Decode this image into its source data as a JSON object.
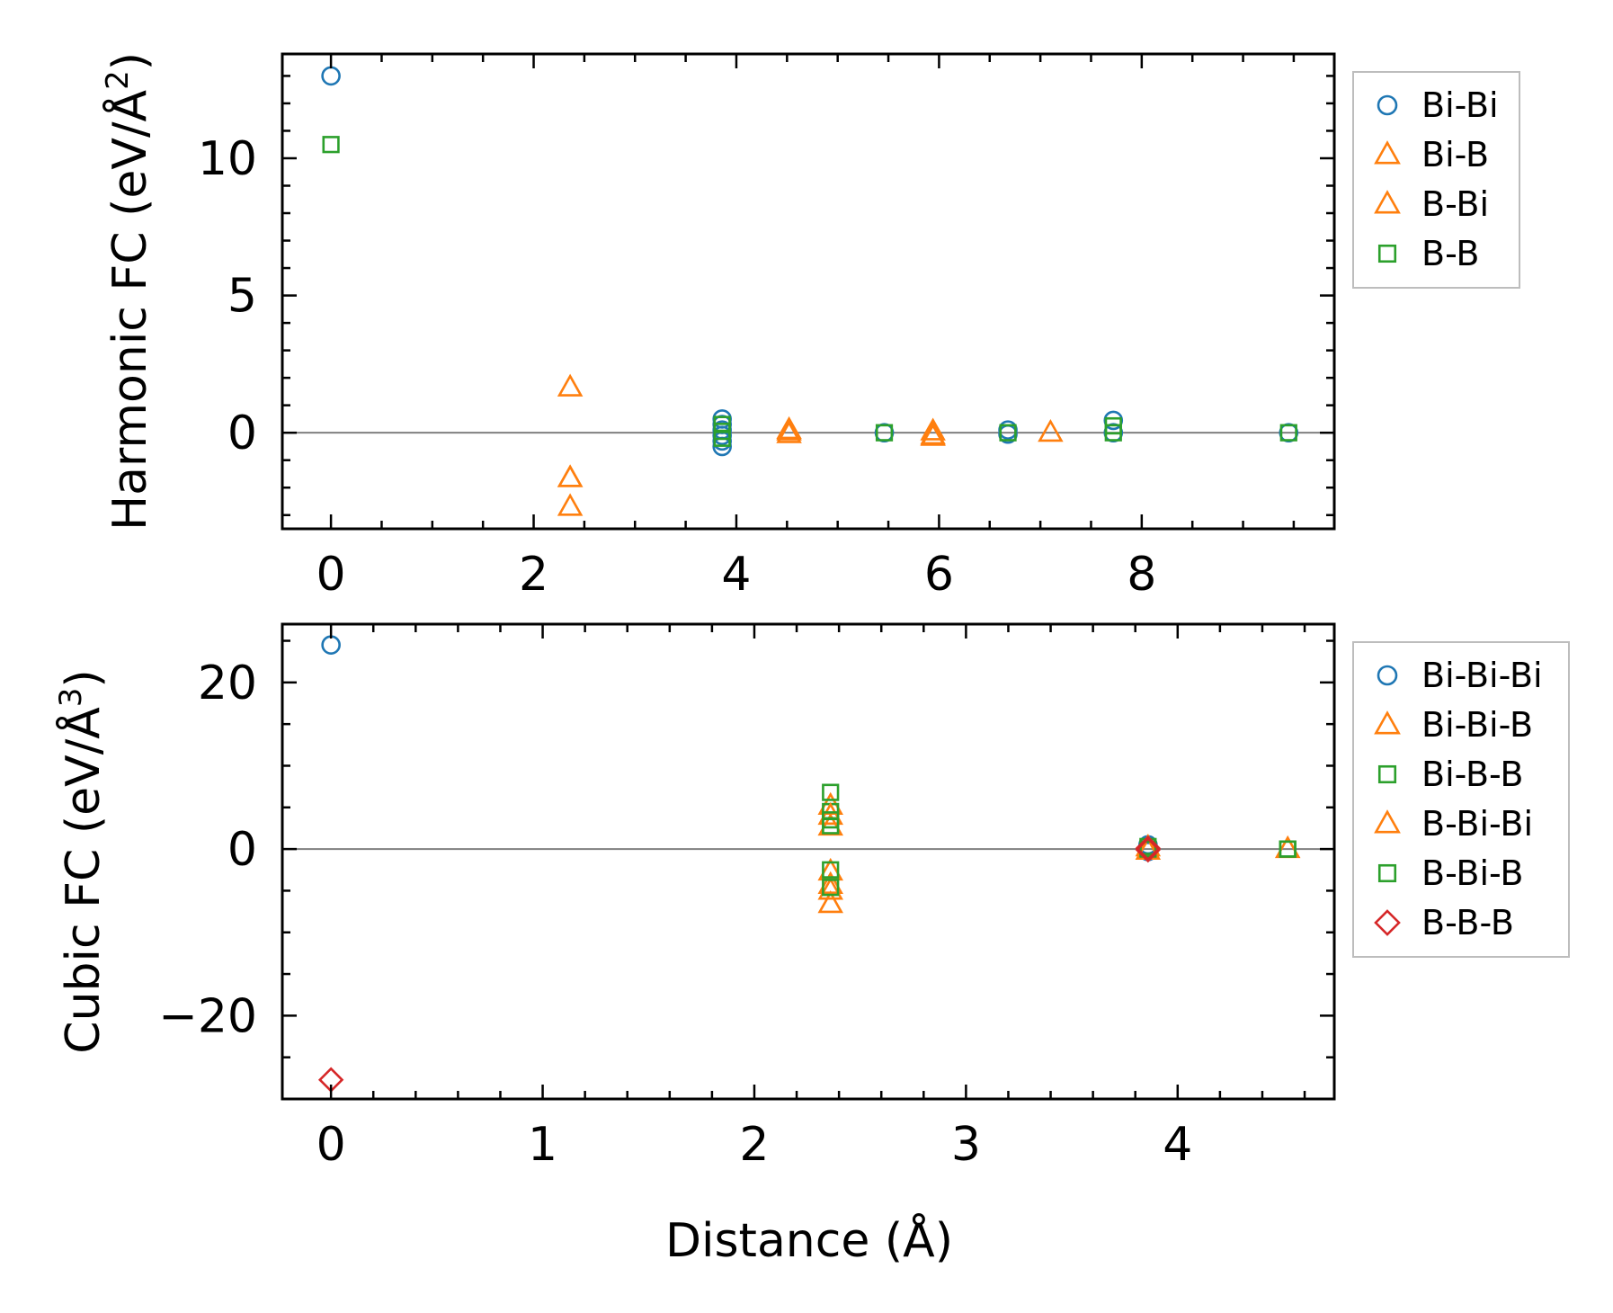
{
  "colors": {
    "blue": "#1f77b4",
    "orange": "#ff7f0e",
    "green": "#2ca02c",
    "red": "#d62728"
  },
  "chart_data": [
    {
      "type": "scatter",
      "ylabel": "Harmonic FC (eV/Å",
      "ylabel_sup": "2",
      "ylabel_end": ")",
      "xlabel": "",
      "xlim": [
        -0.48,
        9.9
      ],
      "ylim": [
        -3.5,
        13.8
      ],
      "xticks": [
        0,
        2,
        4,
        6,
        8
      ],
      "xtick_labels": [
        "0",
        "2",
        "4",
        "6",
        "8"
      ],
      "xminor": [
        0.5,
        1,
        1.5,
        2.5,
        3,
        3.5,
        4.5,
        5,
        5.5,
        6.5,
        7,
        7.5,
        8.5,
        9,
        9.5
      ],
      "yticks": [
        0,
        5,
        10
      ],
      "ytick_labels": [
        "0",
        "5",
        "10"
      ],
      "yminor": [
        -3,
        -2,
        -1,
        1,
        2,
        3,
        4,
        6,
        7,
        8,
        9,
        11,
        12,
        13
      ],
      "hline": 0,
      "legend_position": "outside right, top",
      "series": [
        {
          "name": "Bi-Bi",
          "marker": "circle",
          "color": "#1f77b4",
          "x": [
            0,
            3.86,
            3.86,
            3.86,
            3.86,
            3.86,
            3.86,
            5.46,
            6.68,
            6.68,
            7.72,
            7.72,
            9.45
          ],
          "y": [
            13.0,
            0.5,
            0.3,
            0.1,
            -0.1,
            -0.3,
            -0.5,
            0.0,
            0.1,
            -0.05,
            0.45,
            0.0,
            0.0
          ]
        },
        {
          "name": "Bi-B",
          "marker": "triangle",
          "color": "#ff7f0e",
          "x": [
            2.36,
            2.36,
            2.36,
            4.52,
            4.52,
            5.94,
            5.94,
            7.1
          ],
          "y": [
            1.65,
            -1.65,
            -2.7,
            0.1,
            -0.05,
            0.05,
            -0.15,
            0.0
          ]
        },
        {
          "name": "B-Bi",
          "marker": "triangle",
          "color": "#ff7f0e",
          "x": [
            2.36,
            4.52,
            5.94
          ],
          "y": [
            -1.65,
            0.05,
            -0.1
          ]
        },
        {
          "name": "B-B",
          "marker": "square",
          "color": "#2ca02c",
          "x": [
            0,
            3.86,
            3.86,
            3.86,
            5.46,
            6.68,
            7.72,
            7.72,
            9.45
          ],
          "y": [
            10.5,
            0.3,
            0.05,
            -0.2,
            0.0,
            0.0,
            0.25,
            0.0,
            0.0
          ]
        }
      ]
    },
    {
      "type": "scatter",
      "ylabel": "Cubic FC (eV/Å",
      "ylabel_sup": "3",
      "ylabel_end": ")",
      "xlabel": "Distance (Å)",
      "xlim": [
        -0.23,
        4.74
      ],
      "ylim": [
        -30,
        27
      ],
      "xticks": [
        0,
        1,
        2,
        3,
        4
      ],
      "xtick_labels": [
        "0",
        "1",
        "2",
        "3",
        "4"
      ],
      "xminor": [
        0.2,
        0.4,
        0.6,
        0.8,
        1.2,
        1.4,
        1.6,
        1.8,
        2.2,
        2.4,
        2.6,
        2.8,
        3.2,
        3.4,
        3.6,
        3.8,
        4.2,
        4.4,
        4.6
      ],
      "yticks": [
        -20,
        0,
        20
      ],
      "ytick_labels": [
        "−20",
        "0",
        "20"
      ],
      "yminor": [
        -25,
        -15,
        -10,
        -5,
        5,
        10,
        15,
        25
      ],
      "hline": 0,
      "legend_position": "outside right, top",
      "series": [
        {
          "name": "Bi-Bi-Bi",
          "marker": "circle",
          "color": "#1f77b4",
          "x": [
            0,
            3.86,
            3.86
          ],
          "y": [
            24.5,
            0.5,
            -0.3
          ]
        },
        {
          "name": "Bi-Bi-B",
          "marker": "triangle",
          "color": "#ff7f0e",
          "x": [
            2.36,
            2.36,
            2.36,
            2.36,
            2.36,
            3.86,
            4.52
          ],
          "y": [
            5.2,
            2.7,
            -2.7,
            -5.0,
            -6.6,
            0.2,
            0.0
          ]
        },
        {
          "name": "Bi-B-B",
          "marker": "square",
          "color": "#2ca02c",
          "x": [
            2.36,
            2.36,
            2.36,
            3.86,
            4.52
          ],
          "y": [
            6.8,
            4.5,
            2.8,
            0.3,
            0.0
          ]
        },
        {
          "name": "B-Bi-Bi",
          "marker": "triangle",
          "color": "#ff7f0e",
          "x": [
            2.36,
            2.36,
            3.86
          ],
          "y": [
            4.0,
            -4.3,
            -0.2
          ]
        },
        {
          "name": "B-Bi-B",
          "marker": "square",
          "color": "#2ca02c",
          "x": [
            2.36,
            2.36,
            2.36,
            3.86,
            4.52
          ],
          "y": [
            -2.5,
            -4.6,
            3.5,
            0.0,
            0.0
          ]
        },
        {
          "name": "B-B-B",
          "marker": "diamond",
          "color": "#d62728",
          "x": [
            0,
            3.86,
            3.86
          ],
          "y": [
            -27.7,
            0.1,
            -0.1
          ]
        }
      ]
    }
  ]
}
